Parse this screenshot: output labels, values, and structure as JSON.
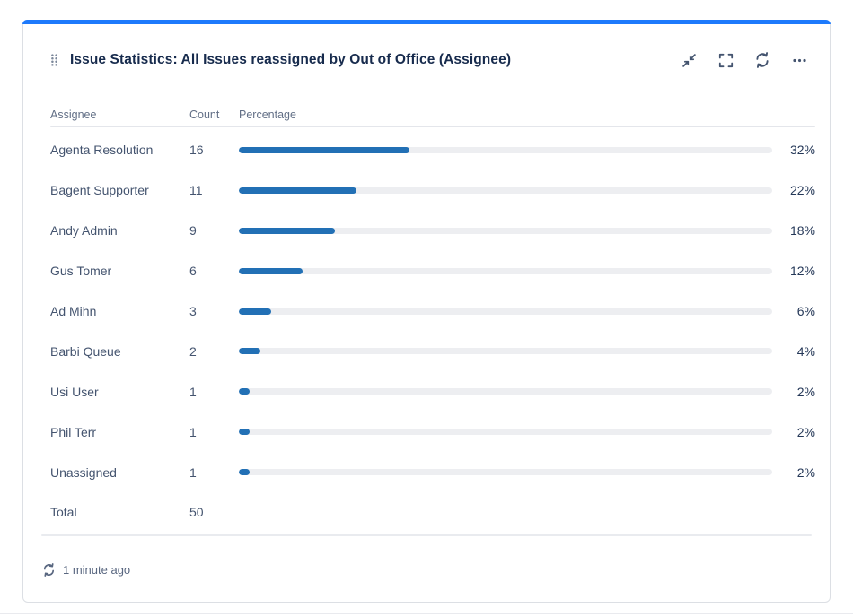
{
  "gadget": {
    "title": "Issue Statistics: All Issues reassigned by Out of Office (Assignee)",
    "toolbar": {
      "collapse_icon": "collapse-arrows",
      "fullscreen_icon": "fullscreen-brackets",
      "refresh_icon": "refresh-arrows",
      "more_icon": "ellipsis"
    },
    "footer": {
      "last_refreshed": "1 minute ago"
    }
  },
  "table": {
    "columns": {
      "assignee": "Assignee",
      "count": "Count",
      "percentage": "Percentage"
    },
    "rows": [
      {
        "assignee": "Agenta Resolution",
        "count": "16",
        "percentage": 32,
        "percentage_label": "32%"
      },
      {
        "assignee": "Bagent Supporter",
        "count": "11",
        "percentage": 22,
        "percentage_label": "22%"
      },
      {
        "assignee": "Andy Admin",
        "count": "9",
        "percentage": 18,
        "percentage_label": "18%"
      },
      {
        "assignee": "Gus Tomer",
        "count": "6",
        "percentage": 12,
        "percentage_label": "12%"
      },
      {
        "assignee": "Ad Mihn",
        "count": "3",
        "percentage": 6,
        "percentage_label": "6%"
      },
      {
        "assignee": "Barbi Queue",
        "count": "2",
        "percentage": 4,
        "percentage_label": "4%"
      },
      {
        "assignee": "Usi User",
        "count": "1",
        "percentage": 2,
        "percentage_label": "2%"
      },
      {
        "assignee": "Phil Terr",
        "count": "1",
        "percentage": 2,
        "percentage_label": "2%"
      },
      {
        "assignee": "Unassigned",
        "count": "1",
        "percentage": 2,
        "percentage_label": "2%"
      }
    ],
    "total": {
      "label": "Total",
      "count": "50"
    }
  },
  "colors": {
    "accent_bar": "#1D7AFC",
    "bar_fill": "#2270B5",
    "bar_track": "#EDEEF1",
    "title_text": "#172B4D",
    "row_text": "#44546F",
    "footer_text": "#596780"
  },
  "chart_data": {
    "type": "bar",
    "orientation": "horizontal",
    "title": "Issue Statistics: All Issues reassigned by Out of Office (Assignee)",
    "categories": [
      "Agenta Resolution",
      "Bagent Supporter",
      "Andy Admin",
      "Gus Tomer",
      "Ad Mihn",
      "Barbi Queue",
      "Usi User",
      "Phil Terr",
      "Unassigned"
    ],
    "values": [
      16,
      11,
      9,
      6,
      3,
      2,
      1,
      1,
      1
    ],
    "percentages": [
      32,
      22,
      18,
      12,
      6,
      4,
      2,
      2,
      2
    ],
    "total": 50,
    "xlabel": "Percentage",
    "ylabel": "Assignee",
    "xlim": [
      0,
      100
    ]
  }
}
